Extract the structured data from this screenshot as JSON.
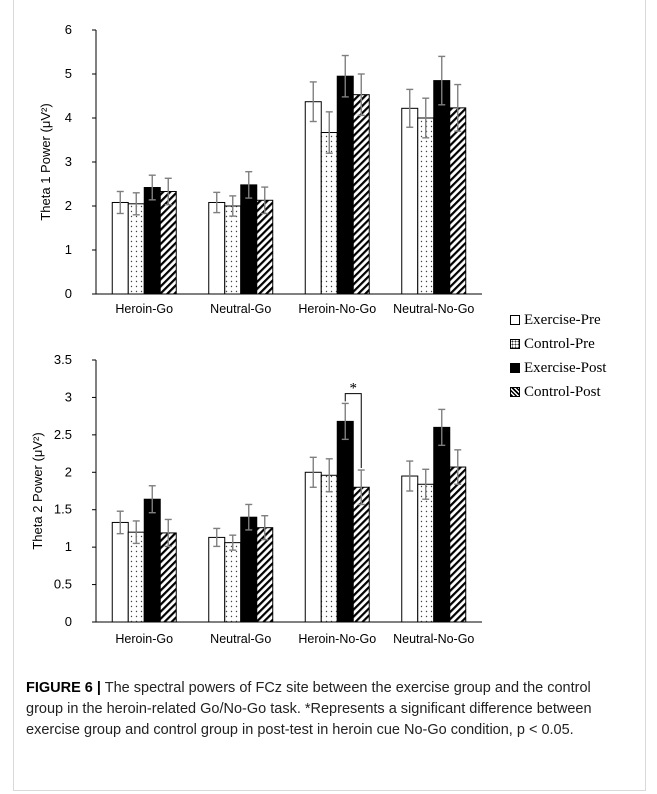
{
  "legend": [
    {
      "label": "Exercise-Pre",
      "pattern": "white"
    },
    {
      "label": "Control-Pre",
      "pattern": "dots"
    },
    {
      "label": "Exercise-Post",
      "pattern": "black"
    },
    {
      "label": "Control-Post",
      "pattern": "hatch"
    }
  ],
  "caption": {
    "label": "FIGURE 6 |",
    "text": "The spectral powers of FCz site between the exercise group and the control group in the heroin-related Go/No-Go task. *Represents a significant difference between exercise group and control group in post-test in heroin cue No-Go condition, p < 0.05."
  },
  "chart_data": [
    {
      "type": "bar",
      "ylabel": "Theta 1 Power (μV²)",
      "categories": [
        "Heroin-Go",
        "Neutral-Go",
        "Heroin-No-Go",
        "Neutral-No-Go"
      ],
      "ylim": [
        0,
        6
      ],
      "yticks": [
        "0",
        "1",
        "2",
        "3",
        "4",
        "5",
        "6"
      ],
      "series": [
        {
          "name": "Exercise-Pre",
          "values": [
            2.08,
            2.08,
            4.37,
            4.22
          ],
          "errors": [
            0.25,
            0.23,
            0.45,
            0.43
          ]
        },
        {
          "name": "Control-Pre",
          "values": [
            2.05,
            2.0,
            3.67,
            4.0
          ],
          "errors": [
            0.25,
            0.23,
            0.47,
            0.45
          ]
        },
        {
          "name": "Exercise-Post",
          "values": [
            2.42,
            2.48,
            4.95,
            4.85
          ],
          "errors": [
            0.28,
            0.3,
            0.47,
            0.55
          ]
        },
        {
          "name": "Control-Post",
          "values": [
            2.33,
            2.13,
            4.53,
            4.23
          ],
          "errors": [
            0.3,
            0.3,
            0.47,
            0.53
          ]
        }
      ],
      "annotations": []
    },
    {
      "type": "bar",
      "ylabel": "Theta 2 Power (μV²)",
      "categories": [
        "Heroin-Go",
        "Neutral-Go",
        "Heroin-No-Go",
        "Neutral-No-Go"
      ],
      "ylim": [
        0,
        3.5
      ],
      "yticks": [
        "0",
        "0.5",
        "1",
        "1.5",
        "2",
        "2.5",
        "3",
        "3.5"
      ],
      "series": [
        {
          "name": "Exercise-Pre",
          "values": [
            1.33,
            1.13,
            2.0,
            1.95
          ],
          "errors": [
            0.15,
            0.12,
            0.2,
            0.2
          ]
        },
        {
          "name": "Control-Pre",
          "values": [
            1.2,
            1.06,
            1.96,
            1.84
          ],
          "errors": [
            0.15,
            0.1,
            0.22,
            0.2
          ]
        },
        {
          "name": "Exercise-Post",
          "values": [
            1.64,
            1.4,
            2.68,
            2.6
          ],
          "errors": [
            0.18,
            0.17,
            0.24,
            0.24
          ]
        },
        {
          "name": "Control-Post",
          "values": [
            1.19,
            1.26,
            1.8,
            2.07
          ],
          "errors": [
            0.18,
            0.16,
            0.23,
            0.23
          ]
        }
      ],
      "annotations": [
        {
          "text": "*",
          "category": "Heroin-No-Go",
          "from": "Exercise-Post",
          "to": "Control-Post",
          "y": 3.05
        }
      ]
    }
  ]
}
